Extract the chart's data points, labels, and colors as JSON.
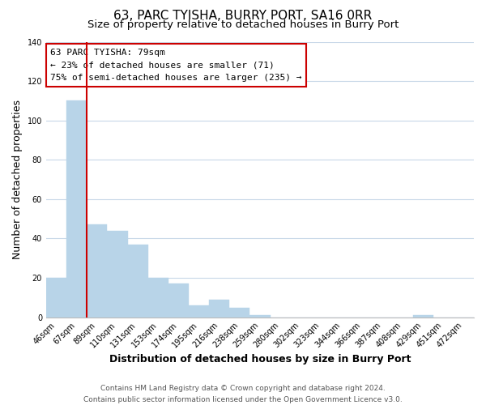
{
  "title": "63, PARC TYISHA, BURRY PORT, SA16 0RR",
  "subtitle": "Size of property relative to detached houses in Burry Port",
  "xlabel": "Distribution of detached houses by size in Burry Port",
  "ylabel": "Number of detached properties",
  "bar_values": [
    20,
    110,
    47,
    44,
    37,
    20,
    17,
    6,
    9,
    5,
    1,
    0,
    0,
    0,
    0,
    0,
    0,
    0,
    1,
    0,
    0
  ],
  "bar_labels": [
    "46sqm",
    "67sqm",
    "89sqm",
    "110sqm",
    "131sqm",
    "153sqm",
    "174sqm",
    "195sqm",
    "216sqm",
    "238sqm",
    "259sqm",
    "280sqm",
    "302sqm",
    "323sqm",
    "344sqm",
    "366sqm",
    "387sqm",
    "408sqm",
    "429sqm",
    "451sqm",
    "472sqm"
  ],
  "bar_color": "#b8d4e8",
  "bar_edge_color": "#b8d4e8",
  "ylim": [
    0,
    140
  ],
  "yticks": [
    0,
    20,
    40,
    60,
    80,
    100,
    120,
    140
  ],
  "red_line_x": 1.5,
  "annotation_text": "63 PARC TYISHA: 79sqm\n← 23% of detached houses are smaller (71)\n75% of semi-detached houses are larger (235) →",
  "annotation_box_color": "#ffffff",
  "annotation_box_edge": "#cc0000",
  "red_line_color": "#cc0000",
  "footer_line1": "Contains HM Land Registry data © Crown copyright and database right 2024.",
  "footer_line2": "Contains public sector information licensed under the Open Government Licence v3.0.",
  "background_color": "#ffffff",
  "grid_color": "#c8d8e8",
  "title_fontsize": 11,
  "subtitle_fontsize": 9.5,
  "axis_label_fontsize": 9,
  "tick_fontsize": 7,
  "annotation_fontsize": 8,
  "footer_fontsize": 6.5
}
